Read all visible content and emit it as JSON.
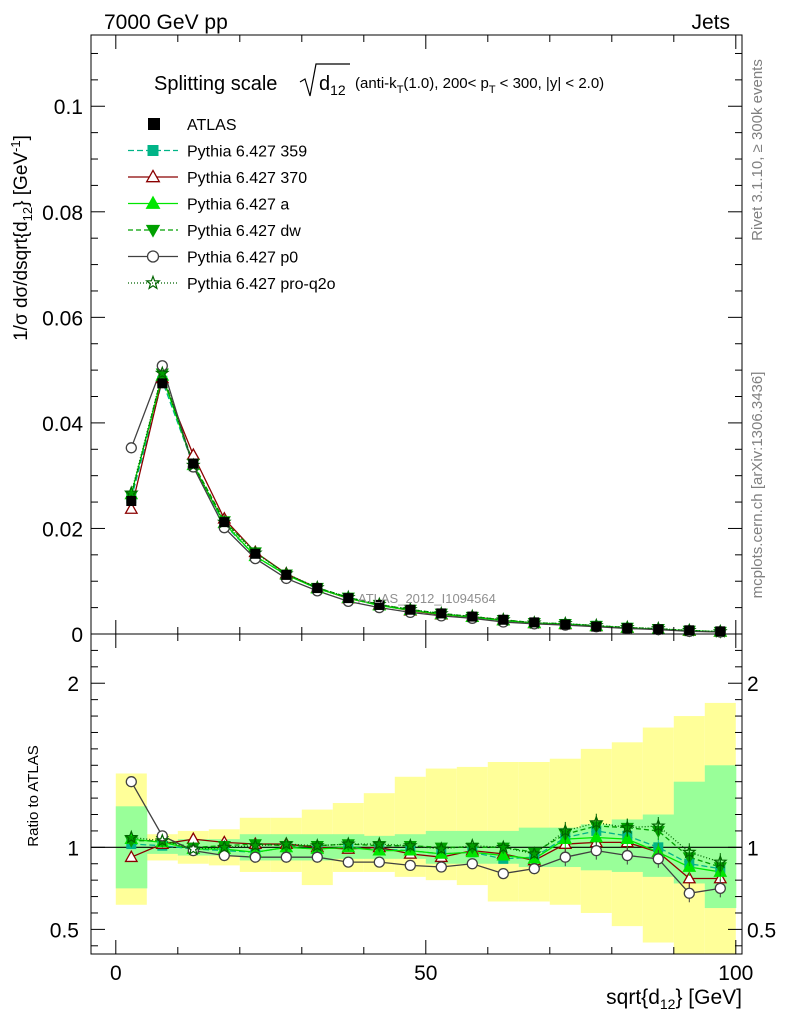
{
  "header": {
    "energy_label": "7000 GeV pp",
    "process_label": "Jets"
  },
  "side_labels": {
    "rivet": "Rivet 3.1.10, ≥ 300k events",
    "mcplots": "mcplots.cern.ch [arXiv:1306.3436]"
  },
  "chart_data": {
    "type": "line",
    "title": {
      "prefix": "Splitting scale",
      "sqrt_label": "d",
      "sqrt_sub": "12",
      "suffix_1": "(anti-k",
      "suffix_1_sub": "T",
      "suffix_2": "(1.0), 200< p",
      "suffix_2_sub": "T",
      "suffix_3": "< 300, |y| < 2.0)"
    },
    "xlabel": {
      "main": "sqrt{d",
      "sub": "12",
      "tail": "} [GeV]"
    },
    "ylabel": {
      "main": "1/σ dσ/dsqrt{d",
      "sub": "12",
      "mid": "} [GeV",
      "sup": "-1",
      "tail": "]"
    },
    "ratio_ylabel": "Ratio to ATLAS",
    "watermark": "ATLAS_2012_I1094564",
    "xlim": [
      -4,
      101
    ],
    "ylim": [
      0,
      0.1135
    ],
    "ratio_ylim": [
      0.35,
      2.3
    ],
    "x_ticks": [
      0,
      50,
      100
    ],
    "x_tick_labels": [
      "0",
      "50",
      "100"
    ],
    "y_ticks": [
      0,
      0.02,
      0.04,
      0.06,
      0.08,
      0.1
    ],
    "y_tick_labels": [
      "0",
      "0.02",
      "0.04",
      "0.06",
      "0.08",
      "0.1"
    ],
    "ratio_ticks": [
      0.5,
      1,
      2
    ],
    "ratio_tick_labels": [
      "0.5",
      "1",
      "2"
    ],
    "bin_edges": [
      0,
      5,
      10,
      15,
      20,
      25,
      30,
      35,
      40,
      45,
      50,
      55,
      60,
      65,
      70,
      75,
      80,
      85,
      90,
      95,
      100
    ],
    "x": [
      2.5,
      7.5,
      12.5,
      17.5,
      22.5,
      27.5,
      32.5,
      37.5,
      42.5,
      47.5,
      52.5,
      57.5,
      62.5,
      67.5,
      72.5,
      77.5,
      82.5,
      87.5,
      92.5,
      97.5
    ],
    "data": {
      "name": "ATLAS",
      "values": [
        0.0252,
        0.0475,
        0.0323,
        0.0212,
        0.0152,
        0.0112,
        0.0087,
        0.0068,
        0.0055,
        0.0046,
        0.0039,
        0.0033,
        0.0027,
        0.0022,
        0.0018,
        0.0014,
        0.0011,
        0.0009,
        0.0007,
        0.0005
      ]
    },
    "band_inner": [
      [
        0.75,
        1.25
      ],
      [
        0.96,
        1.04
      ],
      [
        0.95,
        1.05
      ],
      [
        0.95,
        1.05
      ],
      [
        0.92,
        1.08
      ],
      [
        0.92,
        1.08
      ],
      [
        0.92,
        1.08
      ],
      [
        0.93,
        1.08
      ],
      [
        0.93,
        1.07
      ],
      [
        0.93,
        1.08
      ],
      [
        0.9,
        1.1
      ],
      [
        0.9,
        1.1
      ],
      [
        0.9,
        1.1
      ],
      [
        0.88,
        1.12
      ],
      [
        0.88,
        1.12
      ],
      [
        0.86,
        1.14
      ],
      [
        0.85,
        1.17
      ],
      [
        0.82,
        1.2
      ],
      [
        0.78,
        1.4
      ],
      [
        0.63,
        1.5
      ]
    ],
    "band_outer": [
      [
        0.65,
        1.45
      ],
      [
        0.92,
        1.08
      ],
      [
        0.9,
        1.1
      ],
      [
        0.89,
        1.11
      ],
      [
        0.85,
        1.18
      ],
      [
        0.85,
        1.18
      ],
      [
        0.77,
        1.23
      ],
      [
        0.85,
        1.27
      ],
      [
        0.85,
        1.33
      ],
      [
        0.82,
        1.43
      ],
      [
        0.8,
        1.48
      ],
      [
        0.77,
        1.49
      ],
      [
        0.67,
        1.52
      ],
      [
        0.67,
        1.52
      ],
      [
        0.65,
        1.54
      ],
      [
        0.6,
        1.6
      ],
      [
        0.52,
        1.64
      ],
      [
        0.42,
        1.73
      ],
      [
        0.35,
        1.8
      ],
      [
        0.35,
        1.88
      ]
    ],
    "series": [
      {
        "name": "Pythia 6.427 359",
        "color": "#00b487",
        "dash": "6,3",
        "marker": "square",
        "ratio": [
          1.02,
          1.01,
          0.99,
          0.98,
          0.97,
          1.0,
          0.99,
          1.0,
          0.99,
          0.98,
          0.96,
          0.97,
          0.93,
          0.94,
          1.06,
          1.1,
          1.07,
          1.0,
          0.9,
          0.87
        ]
      },
      {
        "name": "Pythia 6.427 370",
        "color": "#8b0000",
        "dash": "",
        "marker": "triangle-open",
        "ratio": [
          0.94,
          1.02,
          1.05,
          1.03,
          1.02,
          1.02,
          1.0,
          0.99,
          1.0,
          0.96,
          0.94,
          0.98,
          0.96,
          0.92,
          1.02,
          1.03,
          1.03,
          0.97,
          0.81,
          0.81
        ]
      },
      {
        "name": "Pythia 6.427 a",
        "color": "#00e600",
        "dash": "",
        "marker": "triangle",
        "ratio": [
          1.05,
          1.03,
          0.99,
          0.99,
          0.97,
          1.0,
          0.99,
          1.0,
          0.98,
          0.98,
          0.96,
          0.97,
          0.95,
          0.93,
          1.05,
          1.06,
          1.05,
          0.97,
          0.88,
          0.85
        ]
      },
      {
        "name": "Pythia 6.427 dw",
        "color": "#00a000",
        "dash": "5,3",
        "marker": "triangle-down",
        "ratio": [
          1.04,
          1.04,
          1.0,
          1.01,
          1.02,
          1.01,
          1.01,
          1.02,
          1.01,
          1.01,
          1.0,
          1.0,
          1.0,
          0.97,
          1.08,
          1.13,
          1.12,
          1.1,
          0.94,
          0.88
        ]
      },
      {
        "name": "Pythia 6.427 p0",
        "color": "#404040",
        "dash": "",
        "marker": "circle-open",
        "ratio": [
          1.4,
          1.07,
          0.98,
          0.95,
          0.94,
          0.94,
          0.94,
          0.91,
          0.91,
          0.89,
          0.88,
          0.9,
          0.84,
          0.87,
          0.94,
          0.98,
          0.95,
          0.93,
          0.72,
          0.75
        ]
      },
      {
        "name": "Pythia 6.427 pro-q2o",
        "color": "#006400",
        "dash": "1,2",
        "marker": "star-open",
        "ratio": [
          1.06,
          1.04,
          0.99,
          1.0,
          1.01,
          1.02,
          1.01,
          1.02,
          1.02,
          1.01,
          0.99,
          1.01,
          1.0,
          0.96,
          1.1,
          1.15,
          1.12,
          1.13,
          0.97,
          0.91
        ]
      }
    ],
    "main_series_order": [
      "Pythia 6.427 359",
      "Pythia 6.427 370",
      "Pythia 6.427 a",
      "Pythia 6.427 dw",
      "Pythia 6.427 p0",
      "Pythia 6.427 pro-q2o"
    ]
  }
}
